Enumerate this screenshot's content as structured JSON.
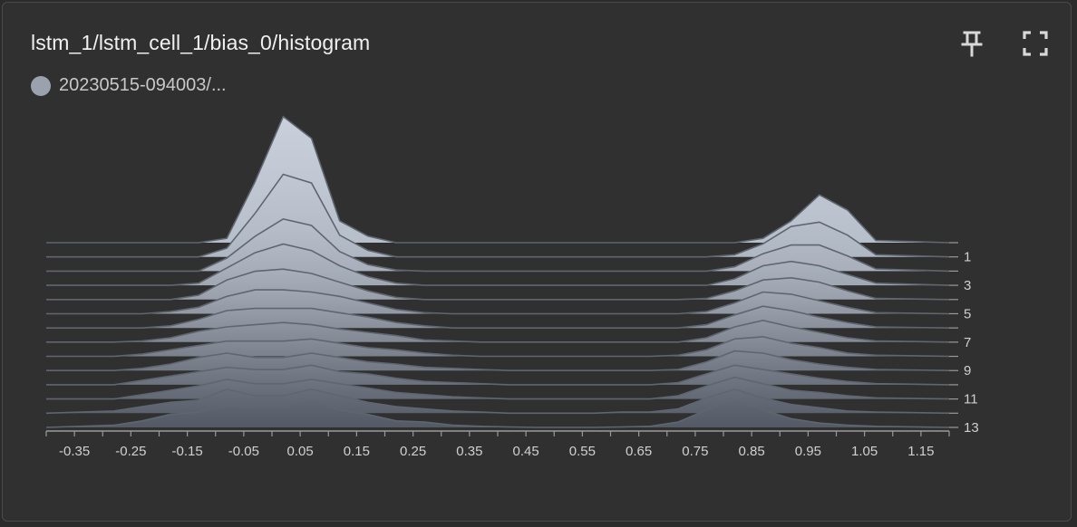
{
  "card": {
    "title": "lstm_1/lstm_cell_1/bias_0/histogram",
    "legend_label": "20230515-094003/...",
    "legend_color": "#9aa3ad",
    "pin_icon": "pin-icon",
    "fullscreen_icon": "fullscreen-icon"
  },
  "chart_data": {
    "type": "area",
    "subtype": "ridgeline-histogram",
    "xlim": [
      -0.4,
      1.2
    ],
    "x_ticks": [
      -0.35,
      -0.25,
      -0.15,
      -0.05,
      0.05,
      0.15,
      0.25,
      0.35,
      0.45,
      0.55,
      0.65,
      0.75,
      0.85,
      0.95,
      1.05,
      1.15
    ],
    "x_tick_labels": [
      "-0.35",
      "-0.25",
      "-0.15",
      "-0.05",
      "0.05",
      "0.15",
      "0.25",
      "0.35",
      "0.45",
      "0.55",
      "0.65",
      "0.75",
      "0.85",
      "0.95",
      "1.05",
      "1.15"
    ],
    "y_ticks": [
      1,
      3,
      5,
      7,
      9,
      11,
      13
    ],
    "y_tick_labels": [
      "1",
      "3",
      "5",
      "7",
      "9",
      "11",
      "13"
    ],
    "steps": [
      0,
      1,
      2,
      3,
      4,
      5,
      6,
      7,
      8,
      9,
      10,
      11,
      12,
      13
    ],
    "x": [
      -0.28,
      -0.23,
      -0.18,
      -0.13,
      -0.08,
      -0.03,
      0.02,
      0.07,
      0.12,
      0.17,
      0.22,
      0.27,
      0.32,
      0.37,
      0.42,
      0.47,
      0.52,
      0.57,
      0.62,
      0.67,
      0.72,
      0.77,
      0.82,
      0.87,
      0.92,
      0.97,
      1.02,
      1.07
    ],
    "series": [
      {
        "step": 0,
        "values": [
          0,
          0,
          0,
          0,
          0.2,
          2.8,
          5.8,
          4.8,
          1.0,
          0.3,
          0,
          0,
          0,
          0,
          0,
          0,
          0,
          0,
          0,
          0,
          0,
          0,
          0,
          0.2,
          1.0,
          2.2,
          1.5,
          0.1
        ]
      },
      {
        "step": 1,
        "values": [
          0,
          0,
          0,
          0,
          0.4,
          2.0,
          3.8,
          3.4,
          1.0,
          0.3,
          0,
          0,
          0,
          0,
          0,
          0,
          0,
          0,
          0,
          0,
          0,
          0,
          0.1,
          0.6,
          1.4,
          1.6,
          1.0,
          0.1
        ]
      },
      {
        "step": 2,
        "values": [
          0,
          0,
          0,
          0,
          0.6,
          1.6,
          2.4,
          2.1,
          0.9,
          0.3,
          0.05,
          0,
          0,
          0,
          0,
          0,
          0,
          0,
          0,
          0,
          0,
          0,
          0.2,
          0.8,
          1.2,
          1.2,
          0.7,
          0.1
        ]
      },
      {
        "step": 3,
        "values": [
          0,
          0,
          0,
          0.1,
          0.8,
          1.5,
          1.9,
          1.6,
          0.9,
          0.4,
          0.1,
          0,
          0,
          0,
          0,
          0,
          0,
          0,
          0,
          0,
          0,
          0,
          0.3,
          0.9,
          1.1,
          0.9,
          0.5,
          0.1
        ]
      },
      {
        "step": 4,
        "values": [
          0,
          0,
          0,
          0.2,
          0.9,
          1.3,
          1.4,
          1.2,
          0.8,
          0.4,
          0.1,
          0,
          0,
          0,
          0,
          0,
          0,
          0,
          0,
          0,
          0,
          0.05,
          0.4,
          0.9,
          1.0,
          0.8,
          0.4,
          0.05
        ]
      },
      {
        "step": 5,
        "values": [
          0,
          0,
          0.1,
          0.3,
          0.8,
          1.1,
          1.1,
          1.0,
          0.8,
          0.5,
          0.2,
          0.05,
          0,
          0,
          0,
          0,
          0,
          0,
          0,
          0,
          0,
          0.1,
          0.5,
          1.0,
          0.9,
          0.6,
          0.3,
          0.05
        ]
      },
      {
        "step": 6,
        "values": [
          0,
          0,
          0.1,
          0.4,
          0.8,
          0.9,
          0.9,
          0.9,
          0.7,
          0.5,
          0.25,
          0.1,
          0,
          0,
          0,
          0,
          0,
          0,
          0,
          0,
          0,
          0.15,
          0.6,
          1.0,
          0.8,
          0.5,
          0.25,
          0.05
        ]
      },
      {
        "step": 7,
        "values": [
          0,
          0.05,
          0.2,
          0.5,
          0.7,
          0.8,
          0.9,
          0.8,
          0.6,
          0.45,
          0.3,
          0.1,
          0.05,
          0,
          0,
          0,
          0,
          0,
          0,
          0,
          0,
          0.2,
          0.7,
          1.0,
          0.7,
          0.45,
          0.2,
          0.05
        ]
      },
      {
        "step": 8,
        "values": [
          0,
          0.1,
          0.3,
          0.5,
          0.7,
          0.7,
          0.7,
          0.8,
          0.6,
          0.4,
          0.3,
          0.15,
          0.05,
          0,
          0,
          0,
          0,
          0,
          0,
          0,
          0.05,
          0.3,
          0.8,
          0.9,
          0.6,
          0.4,
          0.15,
          0.05
        ]
      },
      {
        "step": 9,
        "values": [
          0,
          0.1,
          0.3,
          0.6,
          0.8,
          0.6,
          0.6,
          0.8,
          0.6,
          0.4,
          0.3,
          0.15,
          0.1,
          0.05,
          0,
          0,
          0,
          0,
          0,
          0,
          0.05,
          0.4,
          0.9,
          0.8,
          0.5,
          0.3,
          0.15,
          0.05
        ]
      },
      {
        "step": 10,
        "values": [
          0,
          0.2,
          0.4,
          0.6,
          0.8,
          0.7,
          0.7,
          0.9,
          0.6,
          0.5,
          0.3,
          0.15,
          0.1,
          0.05,
          0,
          0,
          0,
          0,
          0,
          0,
          0.1,
          0.5,
          0.9,
          0.7,
          0.5,
          0.3,
          0.15,
          0.05
        ]
      },
      {
        "step": 11,
        "values": [
          0,
          0.2,
          0.4,
          0.6,
          0.9,
          0.7,
          0.7,
          0.9,
          0.7,
          0.5,
          0.3,
          0.2,
          0.1,
          0.05,
          0,
          0,
          0,
          0,
          0,
          0,
          0.15,
          0.6,
          1.0,
          0.7,
          0.4,
          0.3,
          0.15,
          0.05
        ]
      },
      {
        "step": 12,
        "values": [
          0.1,
          0.3,
          0.5,
          0.6,
          1.1,
          0.8,
          0.8,
          1.1,
          0.8,
          0.5,
          0.3,
          0.2,
          0.1,
          0.05,
          0,
          0,
          0,
          0,
          0.05,
          0.05,
          0.2,
          0.7,
          1.1,
          0.7,
          0.4,
          0.25,
          0.1,
          0.05
        ]
      },
      {
        "step": 13,
        "values": [
          0.1,
          0.3,
          0.6,
          0.7,
          1.0,
          0.9,
          0.9,
          1.2,
          0.8,
          0.6,
          0.3,
          0.25,
          0.1,
          0.05,
          0.02,
          0,
          0,
          0,
          0.02,
          0.05,
          0.25,
          0.8,
          1.2,
          0.8,
          0.4,
          0.2,
          0.1,
          0.05
        ]
      }
    ],
    "grid": false
  }
}
